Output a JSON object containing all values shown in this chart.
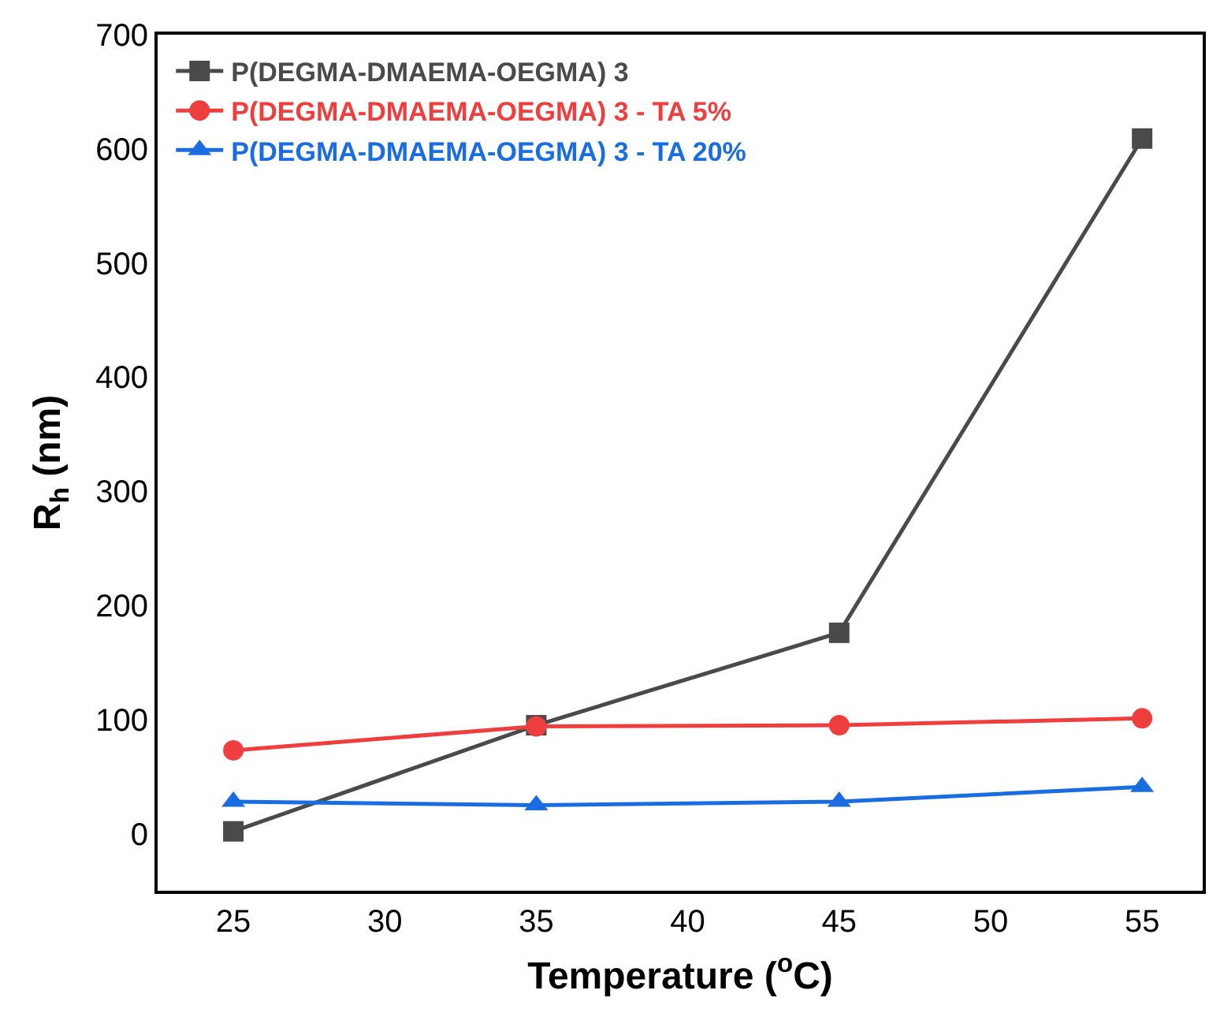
{
  "chart_data": {
    "type": "line",
    "xlabel": "Temperature ($^{o}$C)",
    "ylabel": "R$_{h}$ (nm)",
    "x": [
      25,
      35,
      45,
      55
    ],
    "series": [
      {
        "name": "P(DEGMA-DMAEMA-OEGMA) 3",
        "color": "#4a4a4a",
        "marker": "square",
        "values": [
          2,
          95,
          176,
          609
        ]
      },
      {
        "name": "P(DEGMA-DMAEMA-OEGMA) 3 - TA 5%",
        "color": "#ef3e3e",
        "marker": "circle",
        "values": [
          73,
          94,
          95,
          101
        ]
      },
      {
        "name": "P(DEGMA-DMAEMA-OEGMA) 3 - TA 20%",
        "color": "#1a6de0",
        "marker": "triangle",
        "values": [
          28,
          25,
          28,
          41
        ]
      }
    ],
    "xlim": [
      22.5,
      57
    ],
    "xticks": [
      25,
      30,
      35,
      40,
      45,
      50,
      55
    ],
    "ylim": [
      -50,
      700
    ],
    "yticks": [
      0,
      100,
      200,
      300,
      400,
      500,
      600,
      700
    ],
    "legend": "top left",
    "line_style": "solid"
  }
}
